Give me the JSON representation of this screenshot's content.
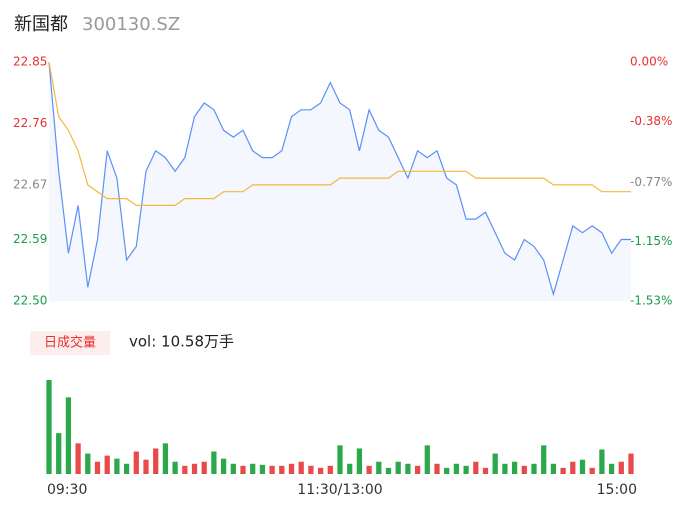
{
  "chart_data": {
    "type": "line",
    "title": "新国都",
    "subtitle": "300130.SZ",
    "x": [
      0,
      4,
      8,
      12,
      16,
      20,
      24,
      28,
      32,
      36,
      40,
      44,
      48,
      52,
      56,
      60,
      64,
      68,
      72,
      76,
      80,
      84,
      88,
      92,
      96,
      100,
      104,
      108,
      112,
      116,
      120,
      124,
      128,
      132,
      136,
      140,
      144,
      148,
      152,
      156,
      160,
      164,
      168,
      172,
      176,
      180,
      184,
      188,
      192,
      196,
      200,
      204,
      208,
      212,
      216,
      220,
      224,
      228,
      232,
      236,
      240
    ],
    "xlim": [
      0,
      240
    ],
    "xticks": [
      {
        "value": 0,
        "label": "09:30"
      },
      {
        "value": 120,
        "label": "11:30/13:00"
      },
      {
        "value": 240,
        "label": "15:00"
      }
    ],
    "ylim": [
      22.5,
      22.85
    ],
    "yticks": [
      {
        "value": 22.5,
        "label": "22.50"
      },
      22.59,
      22.67,
      22.76,
      22.85
    ],
    "ytick_colors": [
      "#1a9c4a",
      "#1a9c4a",
      "#888888",
      "#e8302f",
      "#e8302f"
    ],
    "y2lim": [
      -1.53,
      0
    ],
    "y2ticks": [
      {
        "value": -1.53,
        "label": "-1.53%"
      },
      {
        "value": -1.15,
        "label": "-1.15%"
      },
      {
        "value": -0.77,
        "label": "-0.77%"
      },
      {
        "value": -0.38,
        "label": "-0.38%"
      },
      {
        "value": 0,
        "label": "0.00%"
      }
    ],
    "y2tick_colors": [
      "#1a9c4a",
      "#1a9c4a",
      "#888888",
      "#e8302f",
      "#e8302f"
    ],
    "series": [
      {
        "color": "#5b8ff9",
        "values": [
          22.85,
          22.69,
          22.57,
          22.64,
          22.52,
          22.59,
          22.72,
          22.68,
          22.56,
          22.58,
          22.69,
          22.72,
          22.71,
          22.69,
          22.71,
          22.77,
          22.79,
          22.78,
          22.75,
          22.74,
          22.75,
          22.72,
          22.71,
          22.71,
          22.72,
          22.77,
          22.78,
          22.78,
          22.79,
          22.82,
          22.79,
          22.78,
          22.72,
          22.78,
          22.75,
          22.74,
          22.71,
          22.68,
          22.72,
          22.71,
          22.72,
          22.68,
          22.67,
          22.62,
          22.62,
          22.63,
          22.6,
          22.57,
          22.56,
          22.59,
          22.58,
          22.56,
          22.51,
          22.56,
          22.61,
          22.6,
          22.61,
          22.6,
          22.57,
          22.59,
          22.59
        ]
      },
      {
        "color": "#f2b93b",
        "values": [
          22.85,
          22.77,
          22.75,
          22.72,
          22.67,
          22.66,
          22.65,
          22.65,
          22.65,
          22.64,
          22.64,
          22.64,
          22.64,
          22.64,
          22.65,
          22.65,
          22.65,
          22.65,
          22.66,
          22.66,
          22.66,
          22.67,
          22.67,
          22.67,
          22.67,
          22.67,
          22.67,
          22.67,
          22.67,
          22.67,
          22.68,
          22.68,
          22.68,
          22.68,
          22.68,
          22.68,
          22.69,
          22.69,
          22.69,
          22.69,
          22.69,
          22.69,
          22.69,
          22.69,
          22.68,
          22.68,
          22.68,
          22.68,
          22.68,
          22.68,
          22.68,
          22.68,
          22.67,
          22.67,
          22.67,
          22.67,
          22.67,
          22.66,
          22.66,
          22.66,
          22.66
        ]
      }
    ],
    "volume_label": "日成交量",
    "volume_summary": "vol: 10.58万手",
    "volume": [
      92,
      40,
      75,
      30,
      20,
      12,
      18,
      15,
      10,
      22,
      14,
      25,
      30,
      12,
      8,
      10,
      12,
      22,
      15,
      10,
      8,
      10,
      9,
      8,
      8,
      10,
      12,
      8,
      6,
      8,
      28,
      10,
      25,
      8,
      12,
      6,
      12,
      10,
      8,
      28,
      10,
      6,
      10,
      8,
      12,
      6,
      20,
      10,
      12,
      8,
      10,
      28,
      10,
      6,
      12,
      14,
      6,
      24,
      10,
      12,
      20
    ],
    "up_color": "#e84a4a",
    "down_color": "#2aa84a"
  }
}
